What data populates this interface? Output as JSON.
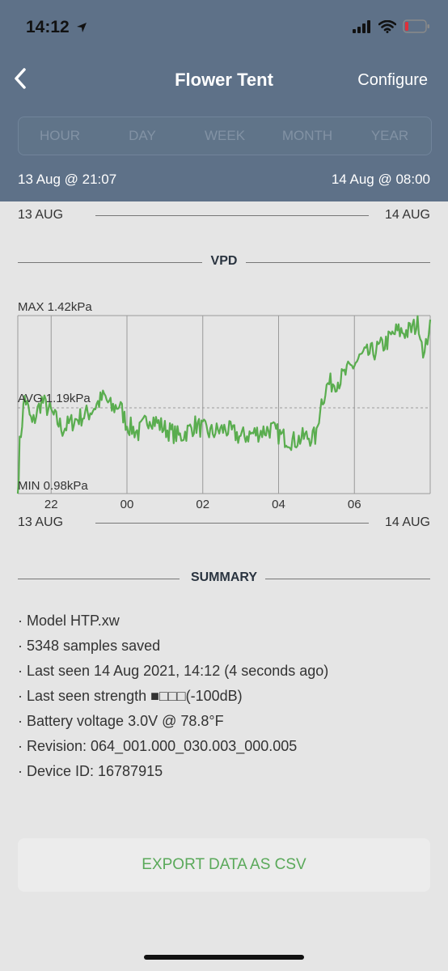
{
  "status": {
    "time": "14:12"
  },
  "nav": {
    "title": "Flower Tent",
    "configure_label": "Configure"
  },
  "segments": [
    "HOUR",
    "DAY",
    "WEEK",
    "MONTH",
    "YEAR"
  ],
  "range": {
    "start": "13 Aug @ 21:07",
    "end": "14 Aug @ 08:00"
  },
  "date_row": {
    "left": "13 AUG",
    "right": "14 AUG"
  },
  "vpd": {
    "section_title": "VPD",
    "max_label": "MAX 1.42kPa",
    "avg_label": "AVG 1.19kPa",
    "min_label": "MIN 0.98kPa"
  },
  "chart_data": {
    "type": "line",
    "x_ticks": [
      "22",
      "00",
      "02",
      "04",
      "06"
    ],
    "x_tick_hours": [
      22,
      24,
      26,
      28,
      30
    ],
    "x_range": [
      21.12,
      32.0
    ],
    "ylim": [
      0.98,
      1.42
    ],
    "avg": 1.19,
    "xlabel_left": "13 AUG",
    "xlabel_right": "14 AUG",
    "colors": {
      "line": "#5aad4f",
      "grid": "#9a9a9a"
    },
    "series": [
      {
        "x": [
          21.12,
          21.17,
          21.3,
          21.5,
          21.75,
          22.0,
          22.3,
          22.6,
          23.0,
          23.4,
          23.6,
          23.8,
          24.0,
          24.3,
          24.6,
          25.0,
          25.4,
          25.8,
          26.2,
          26.6,
          27.0,
          27.4,
          27.8,
          28.1,
          28.4,
          28.7,
          29.0,
          29.1,
          29.3,
          29.6,
          29.9,
          30.2,
          30.5,
          30.8,
          31.1,
          31.4,
          31.7,
          31.85,
          32.0
        ],
        "y": [
          0.98,
          1.1,
          1.22,
          1.15,
          1.21,
          1.18,
          1.14,
          1.16,
          1.18,
          1.22,
          1.19,
          1.2,
          1.15,
          1.13,
          1.17,
          1.14,
          1.12,
          1.15,
          1.13,
          1.14,
          1.12,
          1.13,
          1.14,
          1.12,
          1.11,
          1.12,
          1.12,
          1.2,
          1.25,
          1.26,
          1.29,
          1.32,
          1.33,
          1.35,
          1.38,
          1.38,
          1.4,
          1.32,
          1.41
        ]
      }
    ]
  },
  "summary": {
    "section_title": "SUMMARY",
    "items": [
      "· Model HTP.xw",
      "· 5348 samples saved",
      "· Last seen 14 Aug 2021, 14:12 (4 seconds ago)",
      "· Last seen strength  ■□□□(-100dB)",
      "· Battery voltage 3.0V @ 78.8°F",
      "· Revision: 064_001.000_030.003_000.005",
      "· Device ID: 16787915"
    ]
  },
  "export": {
    "label": "EXPORT DATA AS CSV"
  },
  "icons": {
    "location": "location-arrow-icon",
    "signal": "cellular-signal-icon",
    "wifi": "wifi-icon",
    "battery": "battery-low-icon",
    "back": "chevron-left-icon"
  }
}
